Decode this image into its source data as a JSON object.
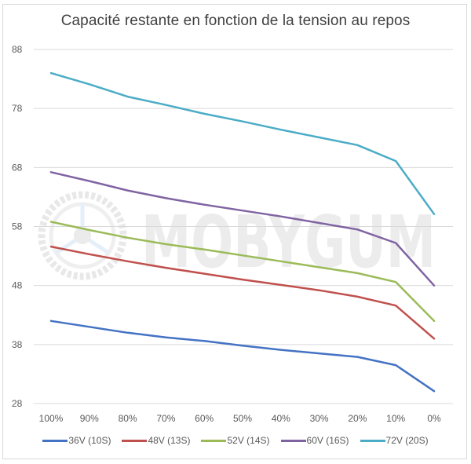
{
  "chart_data": {
    "type": "line",
    "title": "Capacité restante en fonction de la tension au repos",
    "xlabel": "",
    "ylabel": "",
    "categories": [
      "100%",
      "90%",
      "80%",
      "70%",
      "60%",
      "50%",
      "40%",
      "30%",
      "20%",
      "10%",
      "0%"
    ],
    "ylim": [
      28,
      88
    ],
    "yticks": [
      88,
      78,
      68,
      58,
      48,
      38,
      28
    ],
    "grid": true,
    "legend_position": "bottom",
    "series": [
      {
        "name": "36V (10S)",
        "color": "#4472c4",
        "values": [
          42.0,
          41.0,
          40.0,
          39.2,
          38.6,
          37.8,
          37.1,
          36.5,
          35.9,
          34.5,
          30.1
        ]
      },
      {
        "name": "48V (13S)",
        "color": "#c0504d",
        "values": [
          54.6,
          53.3,
          52.1,
          51.0,
          50.0,
          49.0,
          48.1,
          47.2,
          46.1,
          44.6,
          39.0
        ]
      },
      {
        "name": "52V (14S)",
        "color": "#9bbb59",
        "values": [
          58.8,
          57.4,
          56.1,
          55.0,
          54.1,
          53.1,
          52.1,
          51.1,
          50.1,
          48.6,
          42.0
        ]
      },
      {
        "name": "60V (16S)",
        "color": "#8064a2",
        "values": [
          67.2,
          65.7,
          64.1,
          62.8,
          61.7,
          60.7,
          59.7,
          58.6,
          57.5,
          55.2,
          48.0
        ]
      },
      {
        "name": "72V (20S)",
        "color": "#4bacc6",
        "values": [
          84.0,
          82.1,
          80.0,
          78.6,
          77.1,
          75.8,
          74.4,
          73.1,
          71.8,
          69.1,
          60.1
        ]
      }
    ]
  },
  "watermark": {
    "text": "MOBYGUM"
  }
}
